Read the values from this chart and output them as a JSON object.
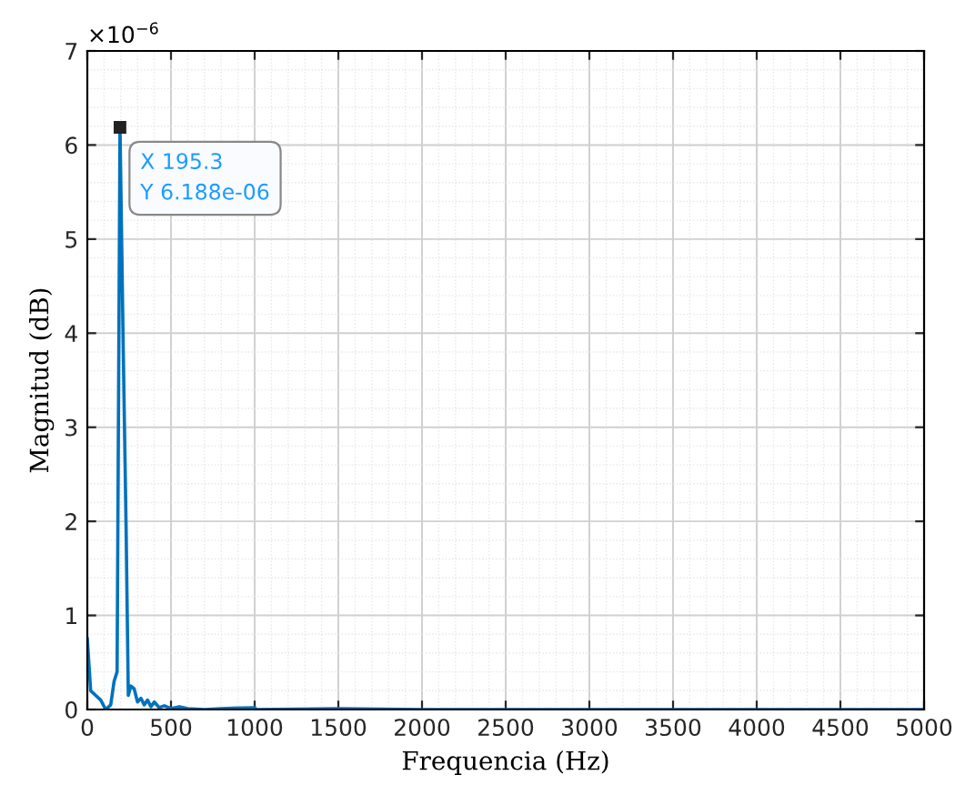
{
  "chart_data": {
    "type": "line",
    "xlabel": "Frequencia (Hz)",
    "ylabel": "Magnitud (dB)",
    "x": [
      0,
      20,
      50,
      80,
      110,
      140,
      160,
      178,
      195.3,
      215,
      232,
      245,
      260,
      280,
      300,
      320,
      340,
      360,
      380,
      400,
      430,
      460,
      500,
      550,
      600,
      700,
      800,
      1000,
      1010,
      1500,
      2000,
      3000,
      4000,
      5000
    ],
    "series": [
      {
        "color": "#0072bd",
        "values": [
          0.75,
          0.2,
          0.15,
          0.1,
          0.0,
          0.05,
          0.3,
          0.4,
          6.188,
          3.8,
          1.9,
          0.15,
          0.25,
          0.22,
          0.08,
          0.12,
          0.05,
          0.1,
          0.03,
          0.08,
          0.02,
          0.04,
          0.01,
          0.03,
          0.01,
          0.0,
          0.01,
          0.02,
          0.0,
          0.01,
          0.0,
          0.0,
          0.0,
          0.0
        ]
      }
    ],
    "xlim": [
      0,
      5000
    ],
    "xticks": [
      0,
      500,
      1000,
      1500,
      2000,
      2500,
      3000,
      3500,
      4000,
      4500,
      5000
    ],
    "ylim": [
      0,
      7
    ],
    "yticks": [
      0,
      1,
      2,
      3,
      4,
      5,
      6,
      7
    ],
    "grid": true,
    "marker": "none",
    "line_style": "solid",
    "annotations": [
      "×10$^{−6}$",
      {
        "text": "X 195.3\nY 6.188e-06",
        "x": 195.3,
        "y": 6.188
      }
    ]
  }
}
